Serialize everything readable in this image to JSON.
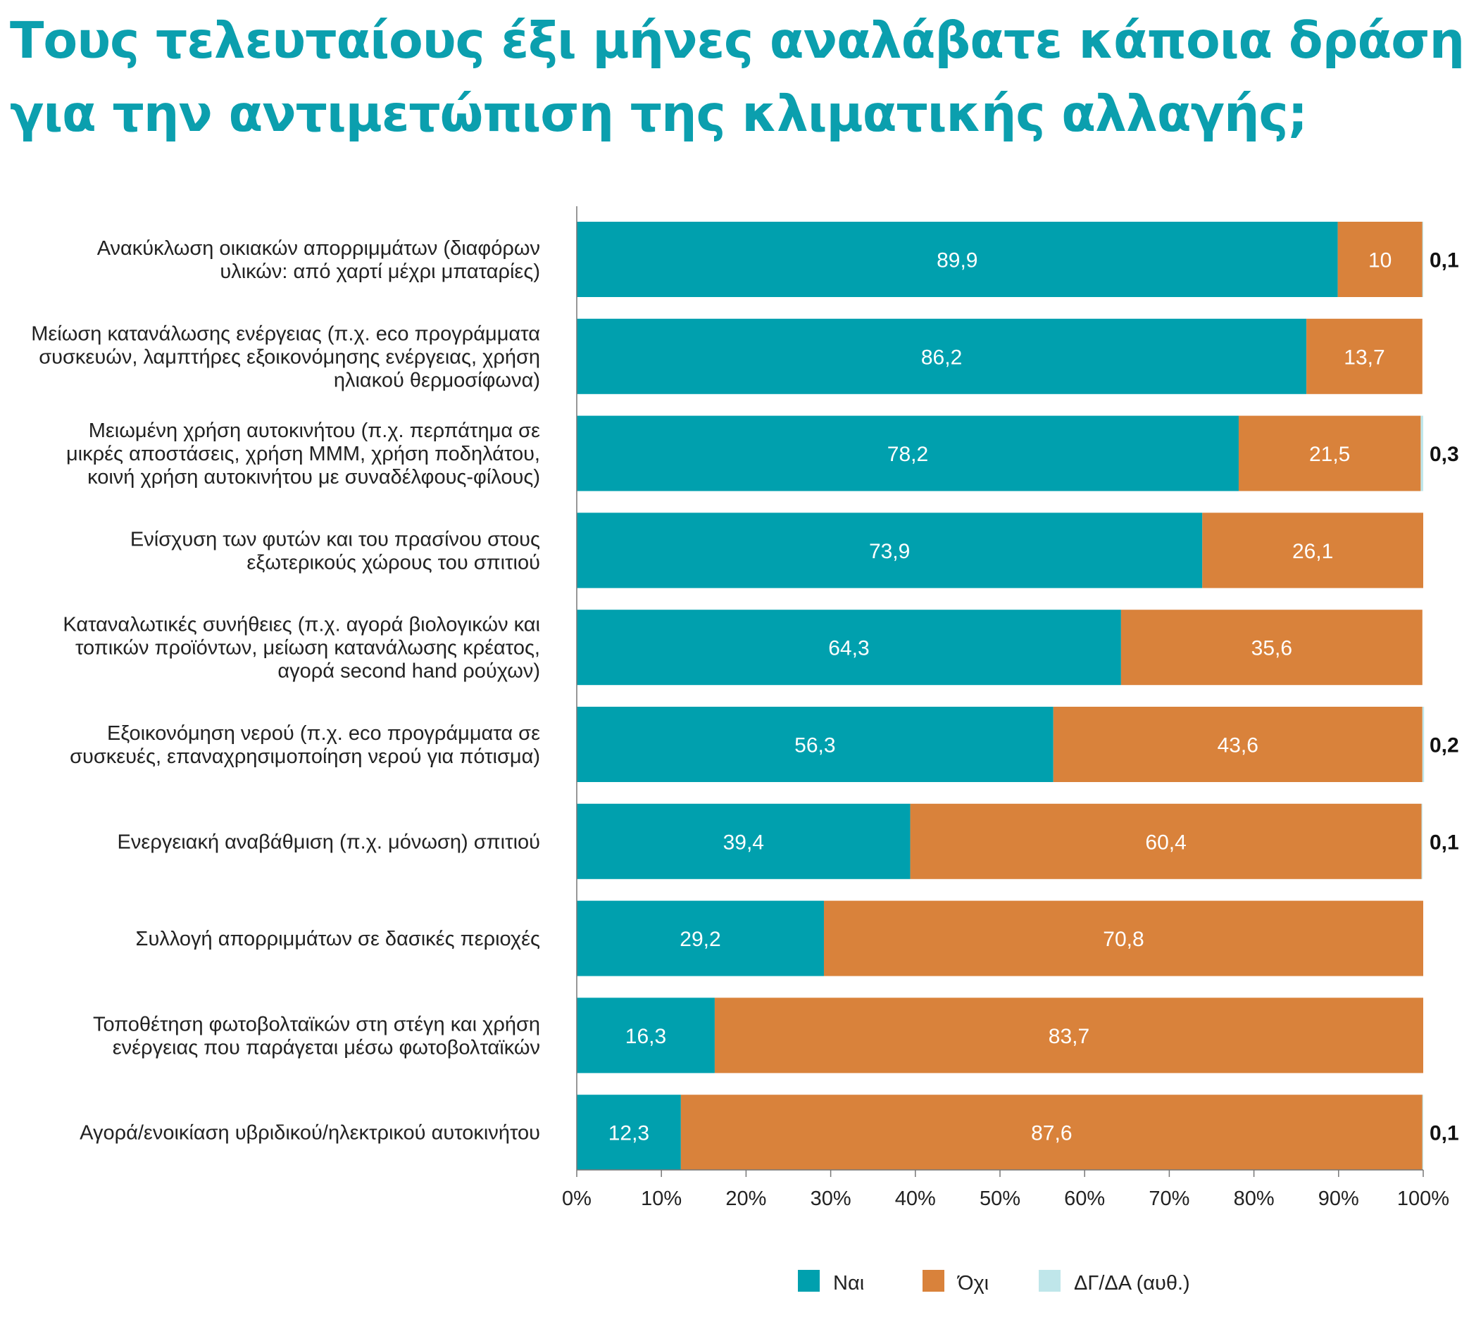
{
  "chart_data": {
    "type": "bar",
    "orientation": "horizontal",
    "stacked": true,
    "title_lines": [
      "Τους τελευταίους έξι μήνες αναλάβατε κάποια δράση",
      "για την αντιμετώπιση της κλιματικής αλλαγής;"
    ],
    "categories": [
      [
        "Ανακύκλωση οικιακών απορριμμάτων (διαφόρων",
        "υλικών: από χαρτί μέχρι μπαταρίες)"
      ],
      [
        "Μείωση κατανάλωσης ενέργειας (π.χ. eco προγράμματα",
        "συσκευών, λαμπτήρες εξοικονόμησης ενέργειας, χρήση",
        "ηλιακού θερμοσίφωνα)"
      ],
      [
        "Μειωμένη χρήση αυτοκινήτου (π.χ. περπάτημα σε",
        "μικρές αποστάσεις, χρήση ΜΜΜ, χρήση ποδηλάτου,",
        "κοινή χρήση αυτοκινήτου με συναδέλφους-φίλους)"
      ],
      [
        "Ενίσχυση των φυτών και του πρασίνου στους",
        "εξωτερικούς χώρους του σπιτιού"
      ],
      [
        "Καταναλωτικές συνήθειες (π.χ. αγορά βιολογικών και",
        "τοπικών προϊόντων, μείωση κατανάλωσης κρέατος,",
        "αγορά second hand ρούχων)"
      ],
      [
        "Εξοικονόμηση νερού (π.χ. eco προγράμματα σε",
        "συσκευές, επαναχρησιμοποίηση νερού για πότισμα)"
      ],
      [
        "Ενεργειακή αναβάθμιση (π.χ. μόνωση) σπιτιού"
      ],
      [
        "Συλλογή απορριμμάτων σε δασικές περιοχές"
      ],
      [
        "Τοποθέτηση φωτοβολταϊκών στη στέγη και χρήση",
        "ενέργειας που παράγεται μέσω φωτοβολταϊκών"
      ],
      [
        "Αγορά/ενοικίαση υβριδικού/ηλεκτρικού αυτοκινήτου"
      ]
    ],
    "series": [
      {
        "name": "Ναι",
        "color": "#00a0ae",
        "values": [
          89.9,
          86.2,
          78.2,
          73.9,
          64.3,
          56.3,
          39.4,
          29.2,
          16.3,
          12.3
        ],
        "labels": [
          "89,9",
          "86,2",
          "78,2",
          "73,9",
          "64,3",
          "56,3",
          "39,4",
          "29,2",
          "16,3",
          "12,3"
        ]
      },
      {
        "name": "Όχι",
        "color": "#d9823b",
        "values": [
          10,
          13.7,
          21.5,
          26.1,
          35.6,
          43.6,
          60.4,
          70.8,
          83.7,
          87.6
        ],
        "labels": [
          "10",
          "13,7",
          "21,5",
          "26,1",
          "35,6",
          "43,6",
          "60,4",
          "70,8",
          "83,7",
          "87,6"
        ]
      },
      {
        "name": "ΔΓ/ΔΑ (αυθ.)",
        "color": "#bfe6ea",
        "values": [
          0.1,
          null,
          0.3,
          null,
          null,
          0.2,
          0.1,
          null,
          null,
          0.1
        ],
        "labels": [
          "0,1",
          "",
          "0,3",
          "",
          "",
          "0,2",
          "0,1",
          "",
          "",
          "0,1"
        ]
      }
    ],
    "xlim": [
      0,
      100
    ],
    "xticks": [
      "0%",
      "10%",
      "20%",
      "30%",
      "40%",
      "50%",
      "60%",
      "70%",
      "80%",
      "90%",
      "100%"
    ],
    "grid": false,
    "legend_position": "bottom-right"
  }
}
